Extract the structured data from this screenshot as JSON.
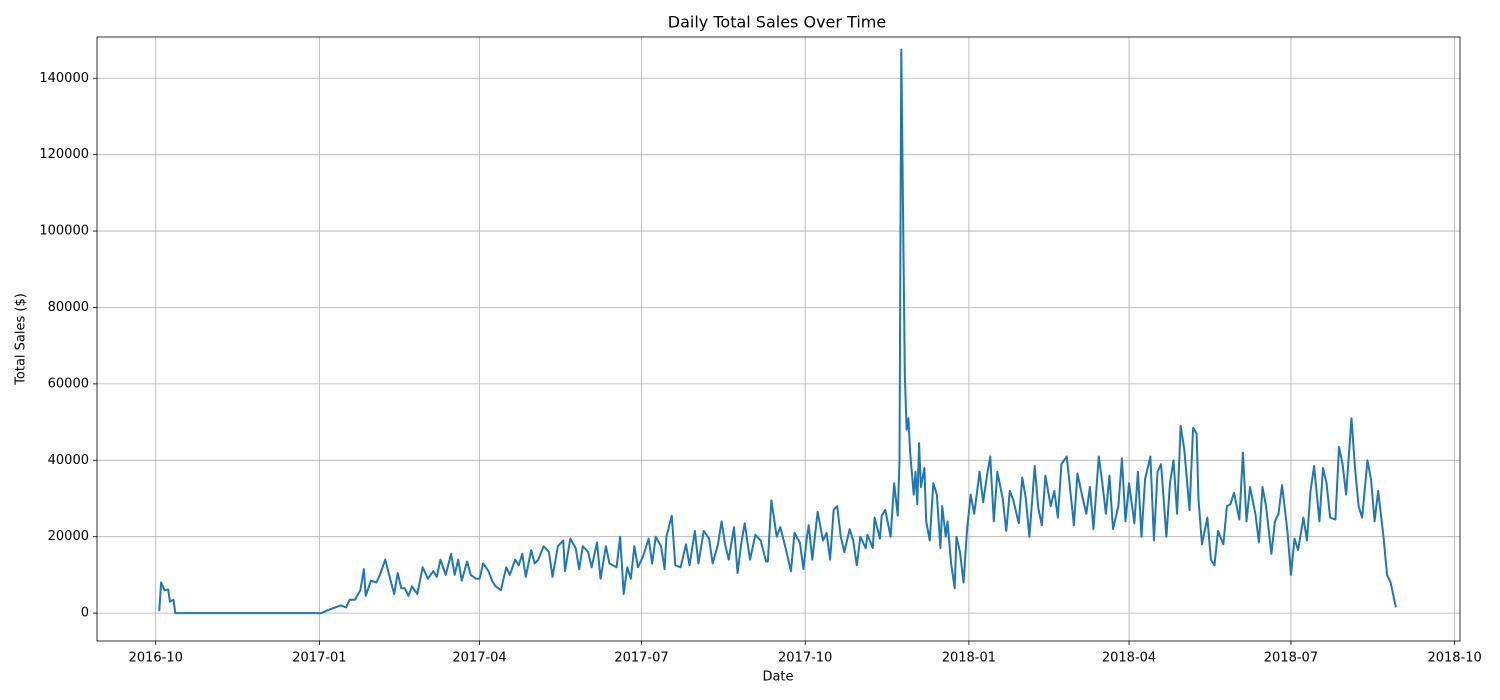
{
  "chart_data": {
    "type": "line",
    "title": "Daily Total Sales Over Time",
    "xlabel": "Date",
    "ylabel": "Total Sales ($)",
    "color": "#1f77b4",
    "grid": true,
    "xlim": [
      -33,
      733
    ],
    "ylim": [
      -7300,
      150800
    ],
    "xticks": [
      {
        "value": 0,
        "label": "2016-10"
      },
      {
        "value": 92,
        "label": "2017-01"
      },
      {
        "value": 182,
        "label": "2017-04"
      },
      {
        "value": 273,
        "label": "2017-07"
      },
      {
        "value": 365,
        "label": "2017-10"
      },
      {
        "value": 457,
        "label": "2018-01"
      },
      {
        "value": 547,
        "label": "2018-04"
      },
      {
        "value": 638,
        "label": "2018-07"
      },
      {
        "value": 730,
        "label": "2018-10"
      }
    ],
    "yticks": [
      0,
      20000,
      40000,
      60000,
      80000,
      100000,
      120000,
      140000
    ],
    "x": [
      2,
      3,
      5,
      7,
      8,
      10,
      11,
      93,
      98,
      104,
      107,
      109,
      112,
      115,
      117,
      118,
      121,
      124,
      126,
      129,
      132,
      134,
      136,
      138,
      140,
      142,
      144,
      147,
      150,
      153,
      156,
      158,
      160,
      163,
      166,
      168,
      170,
      172,
      175,
      177,
      180,
      182,
      184,
      187,
      189,
      191,
      194,
      197,
      199,
      202,
      204,
      206,
      208,
      211,
      213,
      215,
      218,
      221,
      223,
      226,
      229,
      230,
      233,
      236,
      238,
      240,
      243,
      245,
      248,
      250,
      253,
      255,
      259,
      261,
      263,
      265,
      267,
      269,
      271,
      274,
      277,
      279,
      281,
      284,
      286,
      287,
      290,
      292,
      295,
      298,
      300,
      303,
      305,
      308,
      311,
      313,
      316,
      318,
      320,
      322,
      325,
      327,
      329,
      331,
      334,
      337,
      340,
      343,
      344,
      346,
      349,
      351,
      354,
      357,
      359,
      362,
      364,
      366,
      367,
      369,
      372,
      375,
      377,
      379,
      381,
      383,
      385,
      387,
      390,
      392,
      394,
      396,
      399,
      400,
      403,
      404,
      407,
      408,
      410,
      413,
      415,
      417,
      418,
      419,
      421,
      422,
      423,
      424,
      426,
      427,
      428,
      429,
      430,
      432,
      433,
      435,
      437,
      439,
      441,
      442,
      444,
      445,
      447,
      449,
      450,
      452,
      454,
      456,
      458,
      460,
      463,
      465,
      467,
      469,
      471,
      473,
      476,
      478,
      480,
      482,
      485,
      487,
      489,
      491,
      494,
      496,
      498,
      500,
      503,
      505,
      507,
      509,
      512,
      514,
      516,
      518,
      521,
      523,
      525,
      527,
      530,
      532,
      534,
      536,
      538,
      541,
      543,
      545,
      547,
      550,
      552,
      554,
      556,
      559,
      561,
      563,
      565,
      568,
      570,
      572,
      574,
      576,
      578,
      581,
      583,
      585,
      586,
      588,
      591,
      593,
      595,
      597,
      600,
      602,
      604,
      606,
      609,
      611,
      613,
      615,
      618,
      620,
      622,
      624,
      627,
      629,
      631,
      633,
      636,
      638,
      640,
      642,
      645,
      647,
      649,
      651,
      654,
      656,
      658,
      660,
      663,
      665,
      667,
      669,
      672,
      674,
      676,
      678,
      681,
      683,
      685,
      687,
      690,
      692,
      694,
      697
    ],
    "values": [
      500,
      8000,
      6000,
      6200,
      3000,
      3500,
      0,
      0,
      1000,
      2000,
      1500,
      3500,
      3500,
      6000,
      11500,
      4500,
      8500,
      8000,
      10000,
      14000,
      8500,
      5000,
      10500,
      6500,
      6500,
      4500,
      7000,
      5000,
      12000,
      9000,
      11000,
      9500,
      14000,
      10000,
      15500,
      10000,
      14000,
      8500,
      13500,
      10000,
      9000,
      9000,
      13000,
      11000,
      8500,
      7000,
      6000,
      12000,
      10000,
      14000,
      12500,
      15500,
      9500,
      16500,
      13000,
      14000,
      17500,
      16000,
      9500,
      17500,
      19000,
      11000,
      19500,
      17000,
      11500,
      17500,
      16000,
      12000,
      18500,
      9000,
      17500,
      13000,
      12000,
      20000,
      5000,
      12000,
      9000,
      17500,
      12000,
      15000,
      19500,
      13000,
      20000,
      17500,
      11500,
      20000,
      25500,
      12500,
      12000,
      18000,
      12500,
      21500,
      13000,
      21500,
      19500,
      13000,
      18000,
      24000,
      18000,
      14000,
      22500,
      10500,
      18000,
      23500,
      14000,
      20500,
      19000,
      13500,
      13500,
      29500,
      20000,
      22500,
      17000,
      11000,
      21000,
      18500,
      11500,
      20000,
      23000,
      14000,
      26500,
      19000,
      21000,
      14000,
      27000,
      28000,
      20000,
      16000,
      22000,
      19000,
      12500,
      20000,
      17000,
      20500,
      17000,
      25000,
      19500,
      25500,
      27000,
      20000,
      34000,
      25500,
      40000,
      147500,
      62000,
      48000,
      51000,
      42000,
      31000,
      37000,
      28500,
      44500,
      33000,
      38000,
      24000,
      19000,
      34000,
      31000,
      17000,
      28000,
      20000,
      24000,
      13000,
      6500,
      20000,
      16000,
      8000,
      22000,
      31000,
      26000,
      37000,
      29000,
      35500,
      41000,
      24000,
      37000,
      30000,
      21500,
      32000,
      29500,
      23500,
      35500,
      30000,
      20000,
      38500,
      27500,
      23000,
      36000,
      28000,
      32000,
      25000,
      39000,
      41000,
      32000,
      23000,
      36500,
      30000,
      26000,
      33000,
      22000,
      41000,
      34000,
      26000,
      36000,
      22000,
      28000,
      40500,
      24000,
      34000,
      23500,
      37000,
      20000,
      35000,
      41000,
      19000,
      37000,
      39000,
      20000,
      34000,
      40000,
      26000,
      49000,
      43000,
      27000,
      48500,
      47000,
      30000,
      18000,
      25000,
      14000,
      12500,
      21500,
      18000,
      28000,
      28500,
      31500,
      24500,
      42000,
      24000,
      33000,
      26000,
      18500,
      33000,
      28000,
      15500,
      24000,
      26000,
      33500,
      21500,
      10000,
      19500,
      16500,
      25000,
      19000,
      32000,
      38500,
      24000,
      38000,
      34000,
      25000,
      24500,
      43500,
      39000,
      31000,
      51000,
      38000,
      28000,
      25000,
      40000,
      35000,
      24000,
      32000,
      20000,
      10000,
      8000,
      1500
    ]
  }
}
